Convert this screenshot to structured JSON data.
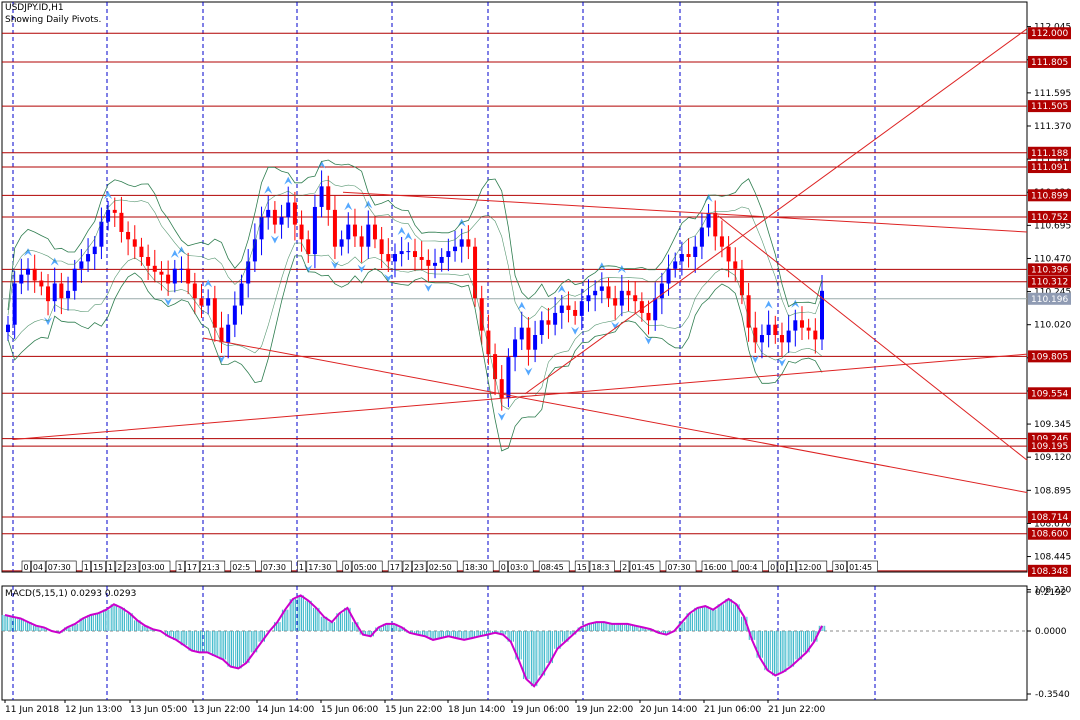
{
  "window": {
    "symbol_label": "USDJPY.ID,H1",
    "subtitle": "Showing Daily Pivots."
  },
  "colors": {
    "background": "#ffffff",
    "grid": "#0000cc",
    "frame": "#000000",
    "bull_candle": "#0000ff",
    "bear_candle": "#ff0000",
    "pivot_line": "#b00000",
    "pivot_label_bg": "#b00000",
    "current_price_bg": "#8f9bb3",
    "band": "#2e7d4f",
    "fractal_arrow": "#55a8ff",
    "macd_hist": "#33b5c8",
    "macd_signal": "#cc00cc",
    "trendline": "#dd2222"
  },
  "chart_data": [
    {
      "type": "candlestick",
      "panel": "main",
      "title": "USDJPY.ID,H1",
      "subtitle": "Showing Daily Pivots.",
      "ylim": [
        108.34,
        112.09
      ],
      "price_ticks": [
        "112.045",
        "111.820",
        "111.595",
        "111.370",
        "111.145",
        "110.920",
        "110.695",
        "110.470",
        "110.245",
        "110.020",
        "109.795",
        "109.570",
        "109.345",
        "109.120",
        "108.895",
        "108.670",
        "108.445",
        "108.220"
      ],
      "x_ticks": [
        "11 Jun 2018",
        "12 Jun 13:00",
        "13 Jun 05:00",
        "13 Jun 22:00",
        "14 Jun 14:00",
        "15 Jun 06:00",
        "15 Jun 22:00",
        "18 Jun 14:00",
        "19 Jun 06:00",
        "19 Jun 22:00",
        "20 Jun 14:00",
        "21 Jun 06:00",
        "21 Jun 22:00"
      ],
      "current_price": "110.196",
      "pivot_levels": [
        "112.000",
        "111.805",
        "111.505",
        "111.188",
        "111.091",
        "110.899",
        "110.752",
        "110.396",
        "110.312",
        "109.805",
        "109.554",
        "109.246",
        "109.195",
        "108.714",
        "108.600",
        "108.348"
      ],
      "close_path": [
        110.02,
        110.3,
        110.36,
        110.4,
        110.32,
        110.28,
        110.18,
        110.3,
        110.2,
        110.25,
        110.4,
        110.45,
        110.5,
        110.55,
        110.72,
        110.8,
        110.78,
        110.65,
        110.6,
        110.55,
        110.48,
        110.42,
        110.38,
        110.36,
        110.3,
        110.4,
        110.4,
        110.3,
        110.2,
        110.15,
        110.2,
        110.0,
        109.9,
        110.02,
        110.15,
        110.3,
        110.45,
        110.6,
        110.75,
        110.8,
        110.7,
        110.75,
        110.85,
        110.7,
        110.6,
        110.5,
        110.82,
        110.96,
        110.8,
        110.55,
        110.6,
        110.7,
        110.62,
        110.55,
        110.7,
        110.6,
        110.5,
        110.45,
        110.5,
        110.52,
        110.52,
        110.48,
        110.46,
        110.42,
        110.44,
        110.48,
        110.52,
        110.55,
        110.6,
        110.55,
        110.2,
        109.98,
        109.82,
        109.65,
        109.52,
        109.8,
        109.92,
        110.0,
        109.85,
        109.95,
        110.05,
        110.02,
        110.1,
        110.15,
        110.12,
        110.08,
        110.18,
        110.22,
        110.25,
        110.28,
        110.2,
        110.15,
        110.25,
        110.22,
        110.18,
        110.1,
        110.05,
        110.2,
        110.3,
        110.4,
        110.45,
        110.5,
        110.48,
        110.55,
        110.68,
        110.78,
        110.62,
        110.55,
        110.45,
        110.4,
        110.22,
        110.0,
        109.9,
        109.95,
        110.02,
        109.95,
        109.9,
        109.98,
        110.05,
        110.0,
        109.98,
        109.92,
        110.25
      ],
      "bollinger_period_note": "",
      "trendlines": [
        {
          "from": [
            "11 Jun 2018",
            109.24
          ],
          "to": [
            "22 Jun",
            109.82
          ]
        },
        {
          "from": [
            "13 Jun 22:00",
            109.93
          ],
          "to": [
            "22 Jun",
            108.88
          ]
        },
        {
          "from": [
            "15 Jun 06:00",
            110.92
          ],
          "to": [
            "22 Jun",
            110.65
          ]
        },
        {
          "from": [
            "19 Jun 06:00",
            109.55
          ],
          "to": [
            "22 Jun",
            112.03
          ]
        },
        {
          "from": [
            "21 Jun 06:00",
            110.76
          ],
          "to": [
            "22 Jun",
            109.1
          ]
        }
      ],
      "session_labels": [
        "0",
        "04",
        "07:30",
        "1",
        "15",
        "1",
        "2",
        "23",
        "03:00",
        "1",
        "17",
        "21:3",
        "02:5",
        "07:30",
        "1",
        "17:30",
        "0",
        "05:00",
        "17",
        "2",
        "23",
        "02:50",
        "18:30",
        "0",
        "03:0",
        "08:45",
        "15",
        "18:3",
        "2",
        "01:45",
        "07:30",
        "16:00",
        "00:4",
        "0",
        "0",
        "1",
        "12:00",
        "30",
        "01:45"
      ]
    },
    {
      "type": "bar",
      "panel": "indicator",
      "title": "MACD(5,15,1) 0.0293 0.0293",
      "ylim": [
        -0.354,
        0.2192
      ],
      "y_ticks": [
        "0.2192",
        "0.0000",
        "-0.3540"
      ],
      "series": [
        {
          "name": "MACD",
          "values": [
            0.09,
            0.08,
            0.07,
            0.05,
            0.03,
            0.02,
            0.0,
            -0.01,
            0.02,
            0.04,
            0.07,
            0.09,
            0.1,
            0.12,
            0.15,
            0.13,
            0.1,
            0.06,
            0.03,
            0.01,
            0.0,
            -0.03,
            -0.05,
            -0.08,
            -0.11,
            -0.12,
            -0.12,
            -0.14,
            -0.16,
            -0.2,
            -0.21,
            -0.18,
            -0.12,
            -0.06,
            0.0,
            0.05,
            0.12,
            0.18,
            0.2,
            0.17,
            0.13,
            0.08,
            0.05,
            0.1,
            0.13,
            0.05,
            -0.02,
            -0.03,
            0.02,
            0.04,
            0.04,
            0.02,
            -0.01,
            -0.02,
            -0.03,
            -0.05,
            -0.04,
            -0.03,
            -0.04,
            -0.05,
            -0.04,
            -0.03,
            -0.02,
            -0.01,
            -0.02,
            -0.06,
            -0.16,
            -0.27,
            -0.31,
            -0.25,
            -0.18,
            -0.1,
            -0.06,
            -0.02,
            0.02,
            0.04,
            0.05,
            0.05,
            0.04,
            0.04,
            0.04,
            0.03,
            0.02,
            0.01,
            -0.01,
            -0.02,
            0.0,
            0.05,
            0.1,
            0.13,
            0.14,
            0.12,
            0.15,
            0.18,
            0.15,
            0.08,
            -0.05,
            -0.15,
            -0.22,
            -0.25,
            -0.23,
            -0.2,
            -0.16,
            -0.12,
            -0.06,
            0.0293
          ]
        }
      ]
    }
  ]
}
